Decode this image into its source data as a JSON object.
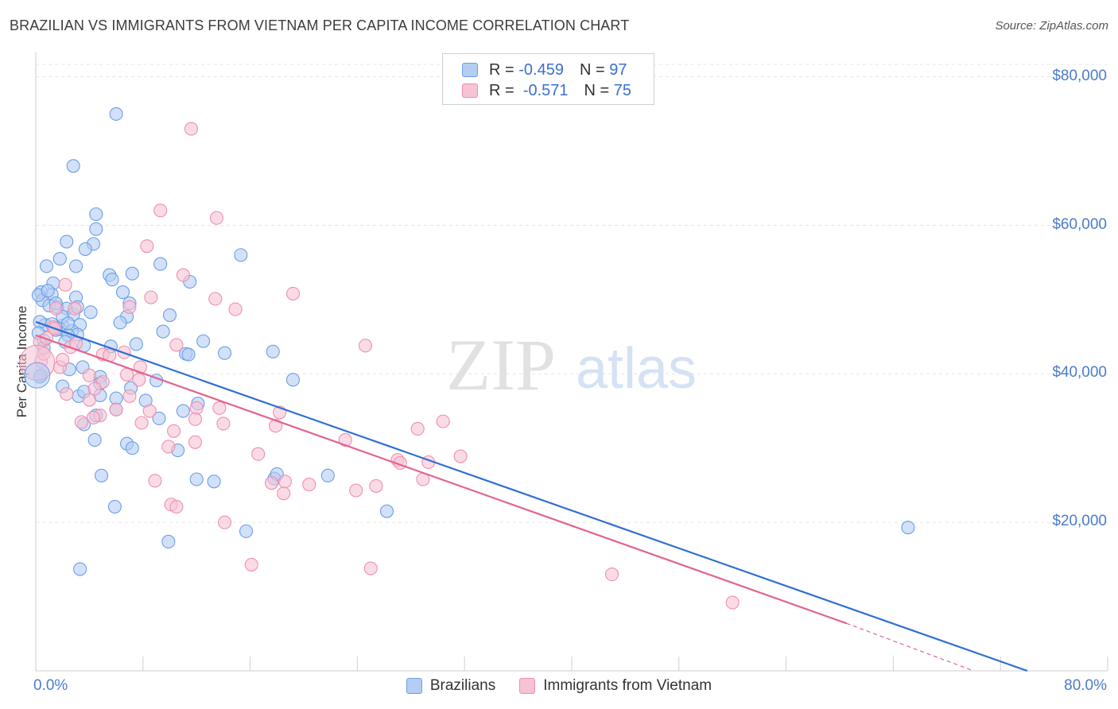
{
  "header": {
    "title": "BRAZILIAN VS IMMIGRANTS FROM VIETNAM PER CAPITA INCOME CORRELATION CHART",
    "source": "Source: ZipAtlas.com"
  },
  "watermark": {
    "zip": "ZIP",
    "atlas": "atlas"
  },
  "legend": {
    "rows": [
      {
        "r_label": "R =",
        "r_value": "-0.459",
        "n_label": "N =",
        "n_value": "97"
      },
      {
        "r_label": "R =",
        "r_value": "-0.571",
        "n_label": "N =",
        "n_value": "75"
      }
    ]
  },
  "colors": {
    "blue": "#6a9ee8",
    "blue_fill": "#b4cdf3",
    "blue_line": "#2e6fd4",
    "pink": "#ee8fae",
    "pink_fill": "#f6c3d4",
    "pink_line": "#e2648f",
    "axis_text": "#4a7cc9",
    "grid": "#e6e6e6"
  },
  "chart_data": {
    "type": "scatter",
    "title": "BRAZILIAN VS IMMIGRANTS FROM VIETNAM PER CAPITA INCOME CORRELATION CHART",
    "xlabel": "",
    "ylabel": "Per Capita Income",
    "xlim": [
      0,
      80
    ],
    "ylim": [
      0,
      82000
    ],
    "x_tick_labels": [
      "0.0%",
      "80.0%"
    ],
    "y_ticks": [
      20000,
      40000,
      60000,
      80000
    ],
    "y_tick_labels": [
      "$20,000",
      "$40,000",
      "$60,000",
      "$80,000"
    ],
    "grid": true,
    "legend_position": "top-center",
    "series": [
      {
        "name": "Brazilians",
        "r": -0.459,
        "n": 97,
        "trend": {
          "x0": 0,
          "y0": 47000,
          "x1": 74,
          "y1": 0
        },
        "points": [
          [
            6.0,
            75000
          ],
          [
            2.8,
            68000
          ],
          [
            4.5,
            61500
          ],
          [
            4.5,
            59500
          ],
          [
            4.3,
            57500
          ],
          [
            2.3,
            57800
          ],
          [
            15.3,
            56000
          ],
          [
            1.8,
            55500
          ],
          [
            0.8,
            54500
          ],
          [
            3.0,
            54500
          ],
          [
            3.7,
            56800
          ],
          [
            9.3,
            54800
          ],
          [
            5.5,
            53300
          ],
          [
            7.2,
            53500
          ],
          [
            5.7,
            52700
          ],
          [
            11.5,
            52400
          ],
          [
            1.3,
            52200
          ],
          [
            0.4,
            51000
          ],
          [
            1.2,
            50700
          ],
          [
            6.5,
            51000
          ],
          [
            3.0,
            50300
          ],
          [
            0.5,
            49900
          ],
          [
            1.6,
            49000
          ],
          [
            2.3,
            48800
          ],
          [
            7.0,
            49500
          ],
          [
            0.7,
            46600
          ],
          [
            4.1,
            48300
          ],
          [
            2.8,
            48000
          ],
          [
            10.0,
            47900
          ],
          [
            6.8,
            47700
          ],
          [
            6.3,
            46900
          ],
          [
            0.3,
            47000
          ],
          [
            2.0,
            46500
          ],
          [
            3.3,
            46600
          ],
          [
            1.8,
            46000
          ],
          [
            2.7,
            45800
          ],
          [
            3.1,
            45300
          ],
          [
            2.4,
            45200
          ],
          [
            9.5,
            45700
          ],
          [
            12.5,
            44400
          ],
          [
            5.6,
            43700
          ],
          [
            11.2,
            42700
          ],
          [
            11.4,
            42600
          ],
          [
            14.1,
            42800
          ],
          [
            17.7,
            43000
          ],
          [
            2.5,
            40600
          ],
          [
            3.5,
            40900
          ],
          [
            0.4,
            39800
          ],
          [
            4.8,
            39600
          ],
          [
            2.0,
            38300
          ],
          [
            4.8,
            38700
          ],
          [
            9.0,
            39100
          ],
          [
            7.1,
            38100
          ],
          [
            19.2,
            39200
          ],
          [
            3.2,
            37000
          ],
          [
            3.6,
            37600
          ],
          [
            4.8,
            37100
          ],
          [
            6.0,
            36700
          ],
          [
            8.2,
            36400
          ],
          [
            12.1,
            36000
          ],
          [
            9.2,
            34000
          ],
          [
            11.0,
            35000
          ],
          [
            4.5,
            34400
          ],
          [
            3.6,
            33200
          ],
          [
            6.0,
            35200
          ],
          [
            4.4,
            31100
          ],
          [
            6.8,
            30600
          ],
          [
            7.2,
            30000
          ],
          [
            10.6,
            29700
          ],
          [
            21.8,
            26300
          ],
          [
            4.9,
            26300
          ],
          [
            12.0,
            25800
          ],
          [
            13.3,
            25500
          ],
          [
            17.8,
            25900
          ],
          [
            18.0,
            26500
          ],
          [
            5.9,
            22100
          ],
          [
            26.2,
            21500
          ],
          [
            15.7,
            18800
          ],
          [
            9.9,
            17400
          ],
          [
            3.3,
            13700
          ],
          [
            65.1,
            19300
          ],
          [
            0.2,
            45500
          ],
          [
            0.6,
            44500
          ],
          [
            1.0,
            49200
          ],
          [
            0.2,
            50600
          ],
          [
            0.9,
            51200
          ],
          [
            1.5,
            49500
          ],
          [
            3.1,
            49000
          ],
          [
            2.0,
            47700
          ],
          [
            2.4,
            46800
          ],
          [
            1.5,
            45900
          ],
          [
            1.2,
            46700
          ],
          [
            0.3,
            39600
          ],
          [
            0.6,
            43500
          ],
          [
            2.2,
            44300
          ],
          [
            3.6,
            43800
          ],
          [
            7.5,
            44000
          ]
        ]
      },
      {
        "name": "Immigrants from Vietnam",
        "r": -0.571,
        "n": 75,
        "trend": {
          "x0": 0,
          "y0": 45200,
          "x1": 60.5,
          "y1": 6400,
          "dash_to_x": 70,
          "dash_to_y": 0
        },
        "points": [
          [
            11.6,
            73000
          ],
          [
            9.3,
            62000
          ],
          [
            13.5,
            61000
          ],
          [
            8.3,
            57200
          ],
          [
            2.2,
            52000
          ],
          [
            11.0,
            53300
          ],
          [
            19.2,
            50800
          ],
          [
            8.6,
            50300
          ],
          [
            13.4,
            50100
          ],
          [
            14.9,
            48700
          ],
          [
            7.0,
            49000
          ],
          [
            1.5,
            48800
          ],
          [
            2.9,
            48800
          ],
          [
            1.3,
            46300
          ],
          [
            24.6,
            43800
          ],
          [
            0.3,
            44300
          ],
          [
            2.6,
            43600
          ],
          [
            0.4,
            41700
          ],
          [
            10.5,
            43900
          ],
          [
            5.0,
            42600
          ],
          [
            6.6,
            42900
          ],
          [
            1.8,
            40900
          ],
          [
            7.8,
            40900
          ],
          [
            4.0,
            39800
          ],
          [
            6.8,
            39900
          ],
          [
            7.7,
            39200
          ],
          [
            5.0,
            38900
          ],
          [
            2.3,
            37300
          ],
          [
            4.0,
            36500
          ],
          [
            7.0,
            37000
          ],
          [
            8.5,
            35000
          ],
          [
            12.0,
            35400
          ],
          [
            13.7,
            35400
          ],
          [
            4.8,
            34400
          ],
          [
            4.3,
            34100
          ],
          [
            7.9,
            33400
          ],
          [
            10.3,
            32300
          ],
          [
            11.9,
            33900
          ],
          [
            14.0,
            33300
          ],
          [
            18.2,
            34800
          ],
          [
            17.9,
            33000
          ],
          [
            30.4,
            33600
          ],
          [
            28.5,
            32600
          ],
          [
            9.9,
            30200
          ],
          [
            11.9,
            30800
          ],
          [
            16.6,
            29200
          ],
          [
            23.1,
            31100
          ],
          [
            31.7,
            28900
          ],
          [
            27.0,
            28400
          ],
          [
            27.2,
            28000
          ],
          [
            29.3,
            28100
          ],
          [
            8.9,
            25600
          ],
          [
            17.6,
            25300
          ],
          [
            18.6,
            25500
          ],
          [
            20.4,
            25100
          ],
          [
            23.9,
            24300
          ],
          [
            25.4,
            24900
          ],
          [
            28.9,
            25800
          ],
          [
            18.5,
            23900
          ],
          [
            10.1,
            22400
          ],
          [
            10.5,
            22100
          ],
          [
            14.1,
            20000
          ],
          [
            16.1,
            14300
          ],
          [
            25.0,
            13800
          ],
          [
            43.0,
            13000
          ],
          [
            52.0,
            9200
          ],
          [
            4.4,
            38000
          ],
          [
            0.6,
            42700
          ],
          [
            1.4,
            46100
          ],
          [
            3.0,
            44100
          ],
          [
            5.5,
            42500
          ],
          [
            6.0,
            35200
          ],
          [
            3.4,
            33500
          ],
          [
            0.8,
            44800
          ],
          [
            2.0,
            41900
          ]
        ]
      }
    ]
  },
  "bottom_legend": {
    "items": [
      {
        "label": "Brazilians"
      },
      {
        "label": "Immigrants from Vietnam"
      }
    ]
  }
}
